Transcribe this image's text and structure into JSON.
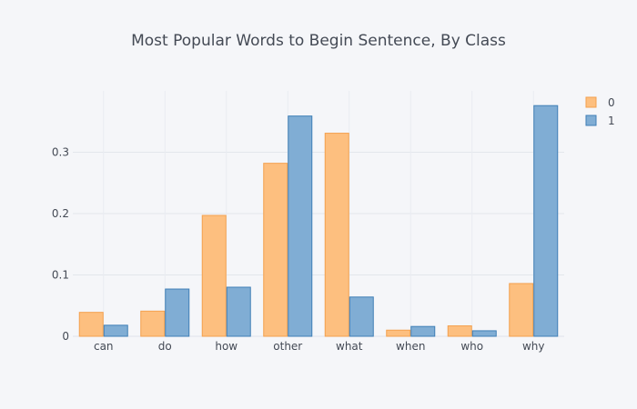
{
  "chart_data": {
    "type": "bar",
    "title": "Most Popular Words to Begin Sentence, By Class",
    "xlabel": "",
    "ylabel": "",
    "categories": [
      "can",
      "do",
      "how",
      "other",
      "what",
      "when",
      "who",
      "why"
    ],
    "series": [
      {
        "name": "0",
        "color": "#fdbf7f",
        "stroke": "#f4a04e",
        "values": [
          0.039,
          0.041,
          0.197,
          0.282,
          0.331,
          0.01,
          0.017,
          0.086
        ]
      },
      {
        "name": "1",
        "color": "#80add4",
        "stroke": "#3f7fb6",
        "values": [
          0.018,
          0.077,
          0.08,
          0.359,
          0.064,
          0.016,
          0.009,
          0.376
        ]
      }
    ],
    "ylim": [
      0,
      0.4
    ],
    "yticks": [
      0,
      0.1,
      0.2,
      0.3
    ],
    "ytick_labels": [
      "0",
      "0.1",
      "0.2",
      "0.3"
    ],
    "grid": true,
    "legend": "top-right"
  }
}
